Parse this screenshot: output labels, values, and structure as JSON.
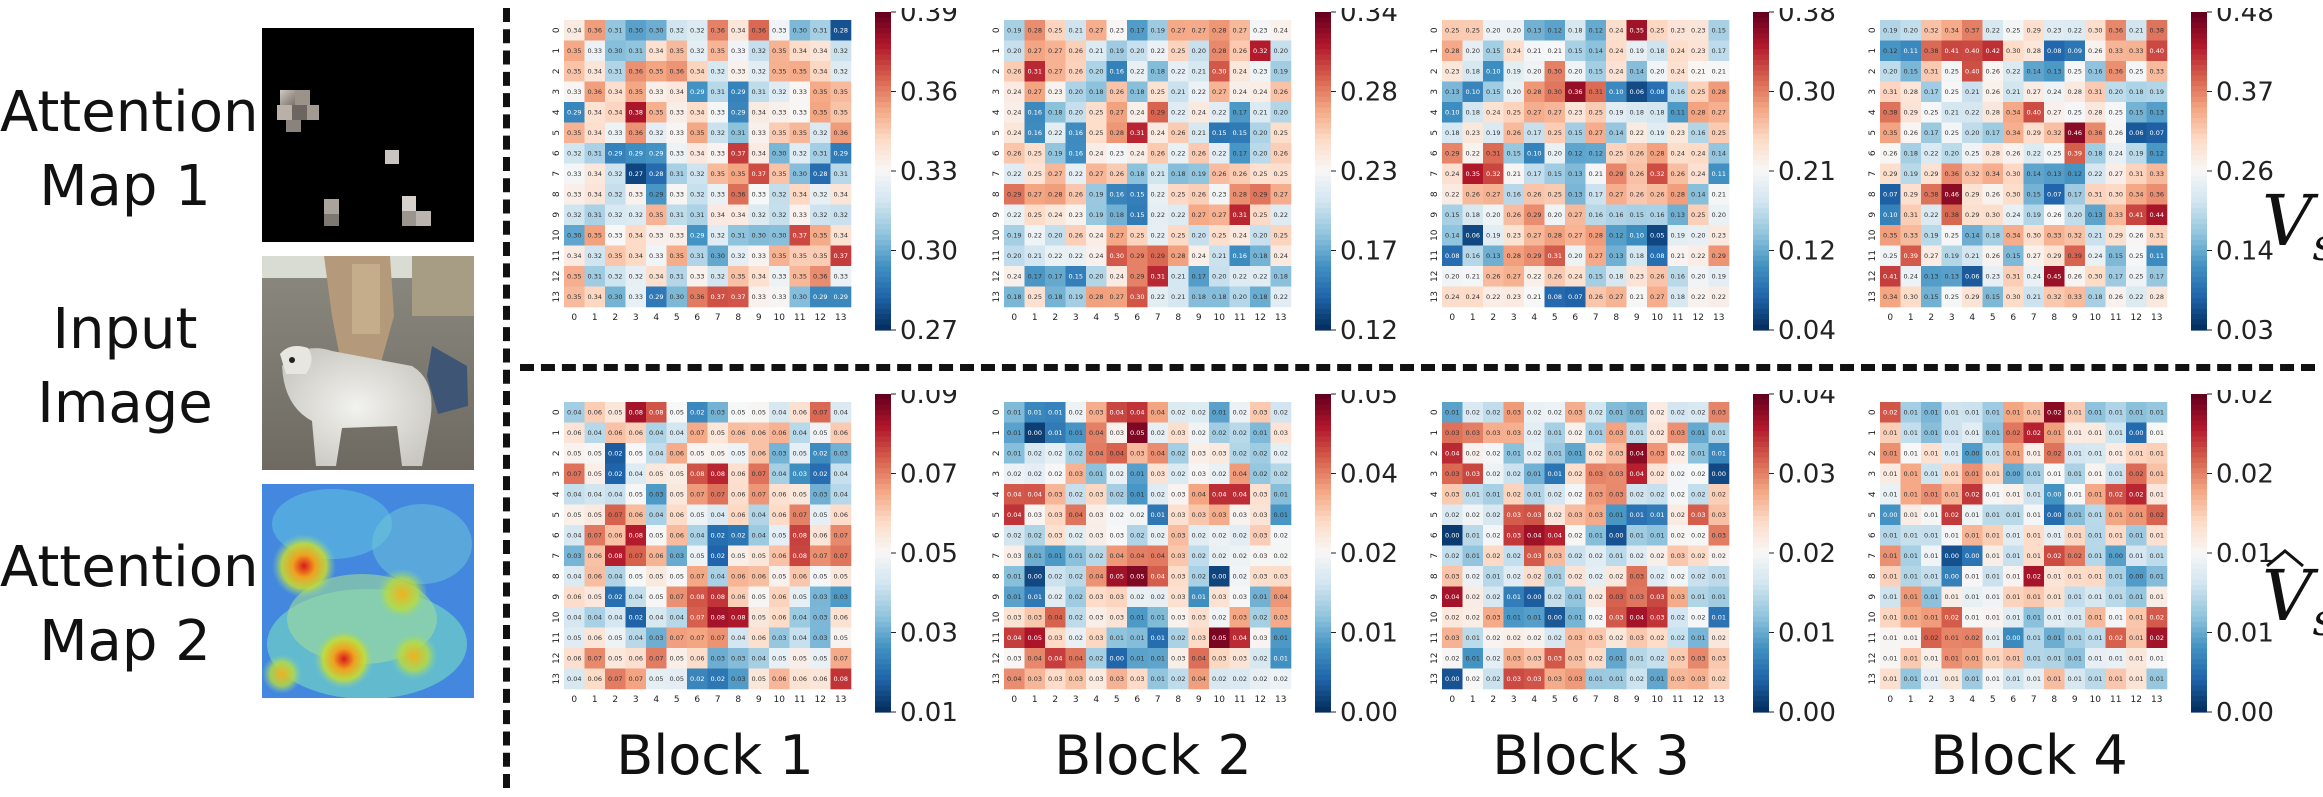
{
  "left_labels": {
    "attention_map_1": "Attention Map 1",
    "input_image": "Input Image",
    "attention_map_2": "Attention Map 2"
  },
  "row_labels": {
    "top": "V",
    "top_sub": "s",
    "bottom": "V",
    "bottom_sub": "s"
  },
  "block_labels": [
    "Block 1",
    "Block 2",
    "Block 3",
    "Block 4"
  ],
  "axis_ticks": [
    "0",
    "1",
    "2",
    "3",
    "4",
    "5",
    "6",
    "7",
    "8",
    "9",
    "10",
    "11",
    "12",
    "13"
  ],
  "colors": {
    "cmap_low": "#053061",
    "cmap_mid": "#f7f7f7",
    "cmap_high": "#67001f",
    "divider": "#111111"
  },
  "chart_data": [
    {
      "type": "heatmap",
      "row": "top",
      "block": "Block 1",
      "colorbar_ticks": [
        "0.39",
        "0.36",
        "0.33",
        "0.30",
        "0.27"
      ],
      "vmin": 0.27,
      "vmax": 0.39,
      "size": 14
    },
    {
      "type": "heatmap",
      "row": "top",
      "block": "Block 2",
      "colorbar_ticks": [
        "0.34",
        "0.28",
        "0.23",
        "0.17",
        "0.12"
      ],
      "vmin": 0.12,
      "vmax": 0.34,
      "size": 14
    },
    {
      "type": "heatmap",
      "row": "top",
      "block": "Block 3",
      "colorbar_ticks": [
        "0.38",
        "0.30",
        "0.21",
        "0.12",
        "0.04"
      ],
      "vmin": 0.04,
      "vmax": 0.38,
      "size": 14
    },
    {
      "type": "heatmap",
      "row": "top",
      "block": "Block 4",
      "colorbar_ticks": [
        "0.48",
        "0.37",
        "0.26",
        "0.14",
        "0.03"
      ],
      "vmin": 0.03,
      "vmax": 0.48,
      "size": 14
    },
    {
      "type": "heatmap",
      "row": "bottom",
      "block": "Block 1",
      "colorbar_ticks": [
        "0.09",
        "0.07",
        "0.05",
        "0.03",
        "0.01"
      ],
      "vmin": 0.01,
      "vmax": 0.09,
      "size": 14
    },
    {
      "type": "heatmap",
      "row": "bottom",
      "block": "Block 2",
      "colorbar_ticks": [
        "0.05",
        "0.04",
        "0.02",
        "0.01",
        "0.00"
      ],
      "vmin": 0.0,
      "vmax": 0.05,
      "size": 14
    },
    {
      "type": "heatmap",
      "row": "bottom",
      "block": "Block 3",
      "colorbar_ticks": [
        "0.04",
        "0.03",
        "0.02",
        "0.01",
        "0.00"
      ],
      "vmin": 0.0,
      "vmax": 0.04,
      "size": 14
    },
    {
      "type": "heatmap",
      "row": "bottom",
      "block": "Block 4",
      "colorbar_ticks": [
        "0.02",
        "0.02",
        "0.01",
        "0.01",
        "0.00"
      ],
      "vmin": 0.0,
      "vmax": 0.02,
      "size": 14
    }
  ]
}
